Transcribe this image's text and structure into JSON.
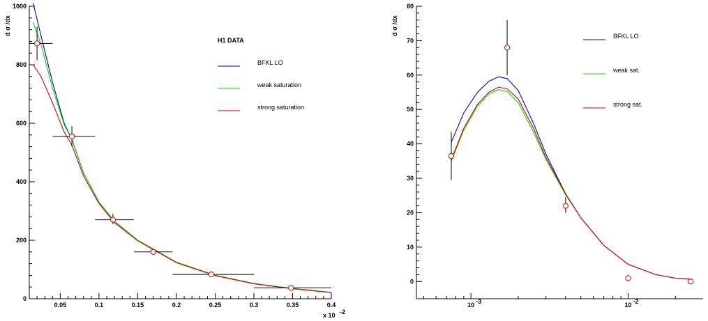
{
  "chart_data": [
    {
      "type": "line",
      "ylabel": "d σ /dx",
      "xlabel": "x 10",
      "xlabel_exponent": "-2",
      "xlim": [
        0.01,
        0.4
      ],
      "ylim": [
        0,
        1000
      ],
      "x_ticks": [
        0.05,
        0.1,
        0.15,
        0.2,
        0.25,
        0.3,
        0.35,
        0.4
      ],
      "x_tick_labels": [
        "0.05",
        "0.1",
        "0.15",
        "0.2",
        "0.25",
        "0.3",
        "0.35",
        "0.4"
      ],
      "y_ticks": [
        0,
        200,
        400,
        600,
        800,
        1000
      ],
      "y_tick_labels": [
        "0",
        "200",
        "400",
        "600",
        "800",
        "1000"
      ],
      "legend_title": "H1 DATA",
      "series": [
        {
          "name": "BFKL LO",
          "color": "#0000cc",
          "x": [
            0.015,
            0.025,
            0.04,
            0.055,
            0.065,
            0.08,
            0.1,
            0.12,
            0.15,
            0.2,
            0.25,
            0.3,
            0.35,
            0.4
          ],
          "y": [
            1010,
            900,
            740,
            600,
            545,
            430,
            330,
            265,
            200,
            125,
            80,
            52,
            35,
            22
          ]
        },
        {
          "name": "weak saturation",
          "color": "#00dd00",
          "x": [
            0.015,
            0.025,
            0.04,
            0.055,
            0.065,
            0.08,
            0.1,
            0.12,
            0.15,
            0.2,
            0.25,
            0.3,
            0.35,
            0.4
          ],
          "y": [
            945,
            870,
            720,
            595,
            545,
            430,
            330,
            265,
            200,
            125,
            80,
            52,
            35,
            22
          ]
        },
        {
          "name": "strong saturation",
          "color": "#dd0000",
          "x": [
            0.015,
            0.025,
            0.04,
            0.055,
            0.065,
            0.08,
            0.1,
            0.12,
            0.15,
            0.2,
            0.25,
            0.3,
            0.35,
            0.4
          ],
          "y": [
            800,
            760,
            670,
            570,
            525,
            420,
            325,
            260,
            198,
            123,
            79,
            51,
            34,
            21
          ]
        }
      ],
      "data_points": {
        "name": "H1 DATA",
        "x": [
          0.02,
          0.065,
          0.118,
          0.17,
          0.245,
          0.348
        ],
        "y": [
          873,
          555,
          270,
          160,
          83,
          37
        ],
        "x_err": [
          [
            0.01,
            0.04
          ],
          [
            0.04,
            0.095
          ],
          [
            0.095,
            0.145
          ],
          [
            0.145,
            0.195
          ],
          [
            0.195,
            0.3
          ],
          [
            0.3,
            0.4
          ]
        ],
        "y_err": [
          [
            815,
            930
          ],
          [
            520,
            590
          ],
          [
            255,
            290
          ],
          [
            150,
            170
          ],
          [
            78,
            88
          ],
          [
            34,
            40
          ]
        ]
      }
    },
    {
      "type": "line",
      "xscale": "log",
      "ylabel": "d σ /dx",
      "xlim": [
        0.00045,
        0.03
      ],
      "ylim": [
        -5,
        80
      ],
      "x_ticks": [
        0.001,
        0.01
      ],
      "x_tick_labels": [
        "10",
        "10"
      ],
      "x_tick_exponents": [
        "-3",
        "-2"
      ],
      "y_ticks": [
        0,
        10,
        20,
        30,
        40,
        50,
        60,
        70,
        80
      ],
      "y_tick_labels": [
        "0",
        "10",
        "20",
        "30",
        "40",
        "50",
        "60",
        "70",
        "80"
      ],
      "series": [
        {
          "name": "BFKL LO",
          "color": "#0000cc",
          "x": [
            0.00075,
            0.0009,
            0.0011,
            0.0013,
            0.0015,
            0.0017,
            0.002,
            0.0025,
            0.003,
            0.004,
            0.005,
            0.007,
            0.01,
            0.015,
            0.02,
            0.025
          ],
          "y": [
            40.5,
            49,
            55,
            58.2,
            59.5,
            59,
            55.5,
            46,
            37,
            25.5,
            18.5,
            10.5,
            5,
            2,
            1,
            0.7
          ]
        },
        {
          "name": "weak sat.",
          "color": "#00dd00",
          "x": [
            0.00075,
            0.0009,
            0.0011,
            0.0013,
            0.0015,
            0.0017,
            0.002,
            0.0025,
            0.003,
            0.004,
            0.005,
            0.007,
            0.01,
            0.015,
            0.02,
            0.025
          ],
          "y": [
            35,
            44,
            51,
            54.5,
            55.8,
            55.2,
            52,
            43.5,
            35.5,
            25.2,
            18.5,
            10.5,
            5,
            2,
            1,
            0.7
          ]
        },
        {
          "name": "strong sat.",
          "color": "#dd0000",
          "x": [
            0.00075,
            0.0009,
            0.0011,
            0.0013,
            0.0015,
            0.0017,
            0.002,
            0.0025,
            0.003,
            0.004,
            0.005,
            0.007,
            0.01,
            0.015,
            0.02,
            0.025
          ],
          "y": [
            35.5,
            44.5,
            51.5,
            55,
            56.5,
            56,
            53,
            44.5,
            36,
            25.5,
            18.5,
            10.5,
            5,
            2,
            1,
            0.7
          ]
        }
      ],
      "data_points": {
        "x": [
          0.00075,
          0.0017,
          0.004,
          0.01,
          0.025
        ],
        "y": [
          36.5,
          68,
          22,
          1,
          0
        ],
        "y_err": [
          [
            29.5,
            43.5
          ],
          [
            60,
            76
          ],
          [
            20,
            24.5
          ],
          [
            1,
            1
          ],
          [
            0,
            0
          ]
        ]
      }
    }
  ]
}
